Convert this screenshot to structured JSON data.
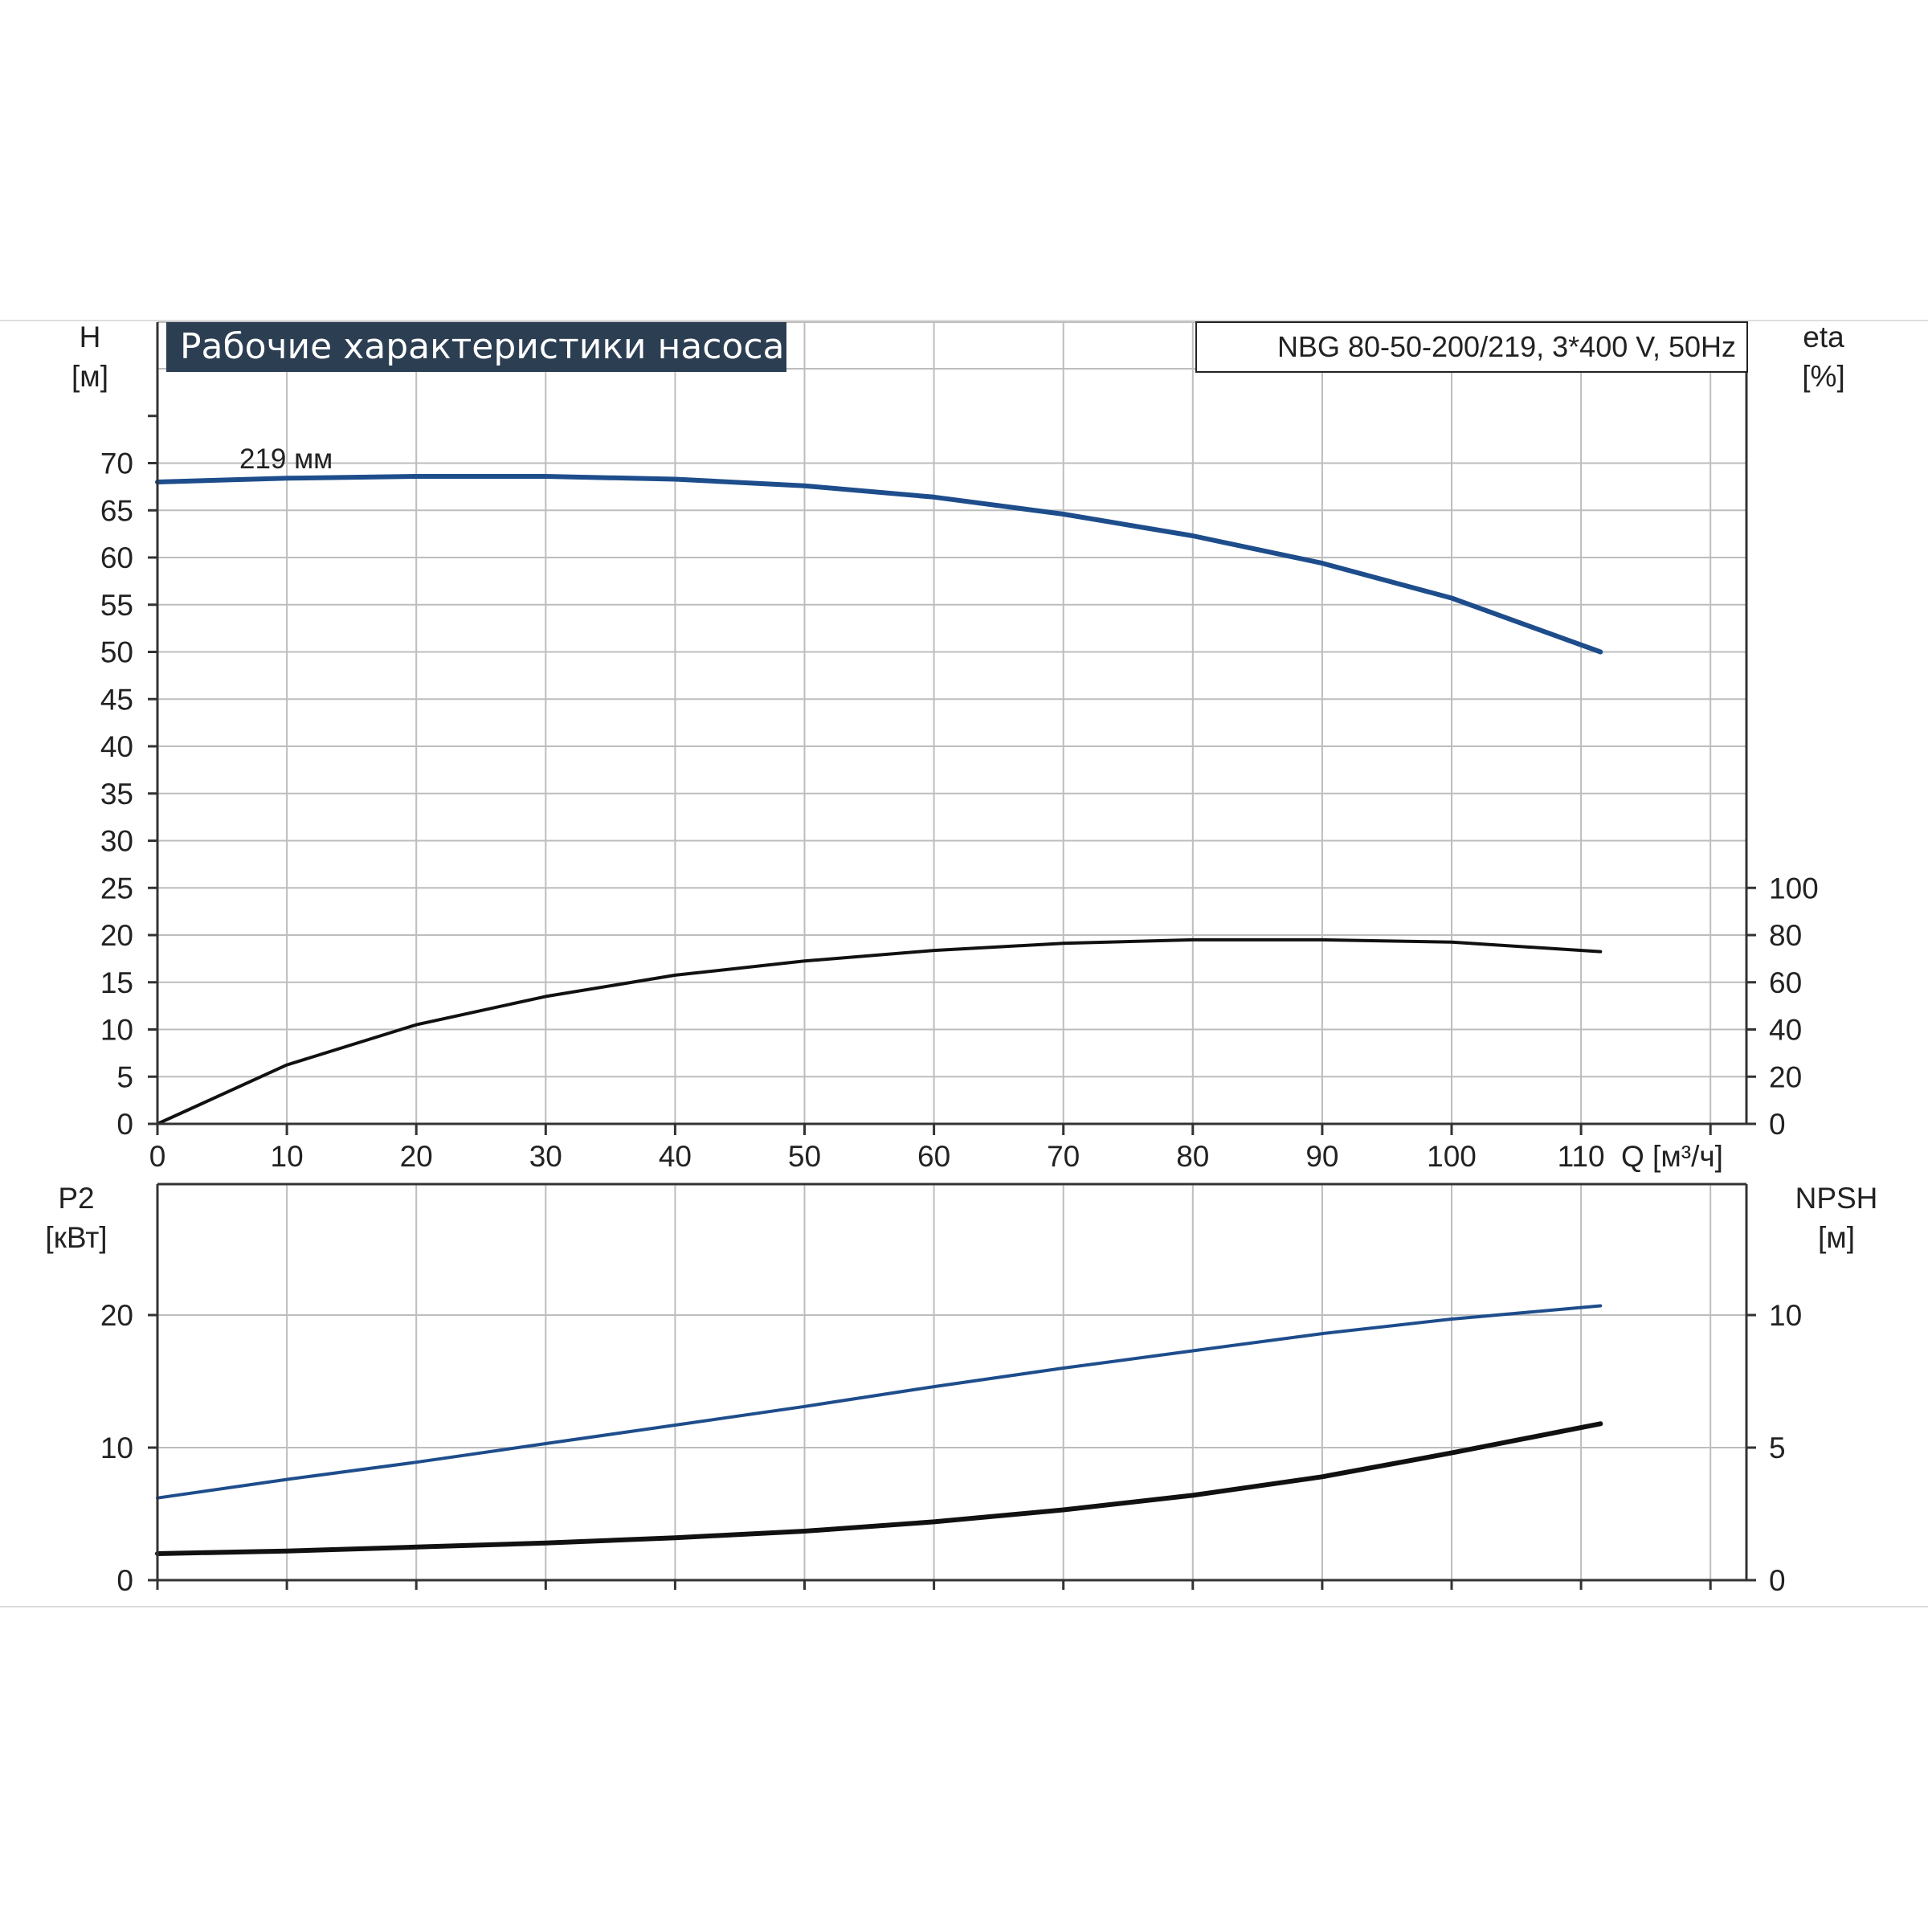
{
  "title": "Рабочие характеристики насоса",
  "model": "NBG 80-50-200/219, 3*400 V, 50Hz",
  "colors": {
    "header_bg": "#2c3e52",
    "blue_curve": "#1e4d8c",
    "black_curve": "#111111",
    "grid": "#bdbdbd",
    "axis": "#333333"
  },
  "chart_data": [
    {
      "type": "line",
      "name": "upper",
      "xlabel": "Q [м³/ч]",
      "x_ticks": [
        "0",
        "10",
        "20",
        "30",
        "40",
        "50",
        "60",
        "70",
        "80",
        "90",
        "100",
        "110"
      ],
      "xlim": [
        0,
        120
      ],
      "left_axis": {
        "label": "H",
        "unit": "[м]",
        "ylim": [
          0,
          80
        ],
        "ticks": [
          "0",
          "5",
          "10",
          "15",
          "20",
          "25",
          "30",
          "35",
          "40",
          "45",
          "50",
          "55",
          "60",
          "65",
          "70"
        ]
      },
      "right_axis": {
        "label": "eta",
        "unit": "[%]",
        "ylim": [
          0,
          320
        ],
        "ticks": [
          "0",
          "20",
          "40",
          "60",
          "80",
          "100"
        ]
      },
      "grid": true,
      "series": [
        {
          "name": "219 мм",
          "axis": "left",
          "color": "#1e4d8c",
          "x": [
            0,
            10,
            20,
            30,
            40,
            50,
            60,
            70,
            80,
            90,
            100,
            111.5
          ],
          "y": [
            68.0,
            68.4,
            68.6,
            68.6,
            68.3,
            67.6,
            66.4,
            64.6,
            62.3,
            59.4,
            55.7,
            50.0
          ]
        },
        {
          "axis": "right",
          "color": "#111111",
          "x": [
            0,
            10,
            20,
            30,
            40,
            50,
            60,
            70,
            80,
            90,
            100,
            111.5
          ],
          "y": [
            0,
            25,
            42,
            54,
            63,
            69,
            73.5,
            76.5,
            78,
            78,
            77,
            73
          ]
        }
      ]
    },
    {
      "type": "line",
      "name": "lower",
      "xlim": [
        0,
        120
      ],
      "left_axis": {
        "label": "P2",
        "unit": "[кВт]",
        "ylim": [
          0,
          30
        ],
        "ticks": [
          "0",
          "10",
          "20"
        ]
      },
      "right_axis": {
        "label": "NPSH",
        "unit": "[м]",
        "ylim": [
          0,
          15
        ],
        "ticks": [
          "0",
          "5",
          "10"
        ]
      },
      "grid": true,
      "series": [
        {
          "axis": "left",
          "color": "#1e4d8c",
          "x": [
            0,
            10,
            20,
            30,
            40,
            50,
            60,
            70,
            80,
            90,
            100,
            111.5
          ],
          "y": [
            6.2,
            7.6,
            8.9,
            10.3,
            11.7,
            13.1,
            14.6,
            16.0,
            17.3,
            18.6,
            19.7,
            20.7
          ]
        },
        {
          "axis": "right",
          "color": "#111111",
          "x": [
            0,
            10,
            20,
            30,
            40,
            50,
            60,
            70,
            80,
            90,
            100,
            111.5
          ],
          "y": [
            1.0,
            1.1,
            1.25,
            1.4,
            1.6,
            1.85,
            2.2,
            2.65,
            3.2,
            3.9,
            4.8,
            5.9
          ]
        }
      ]
    }
  ]
}
